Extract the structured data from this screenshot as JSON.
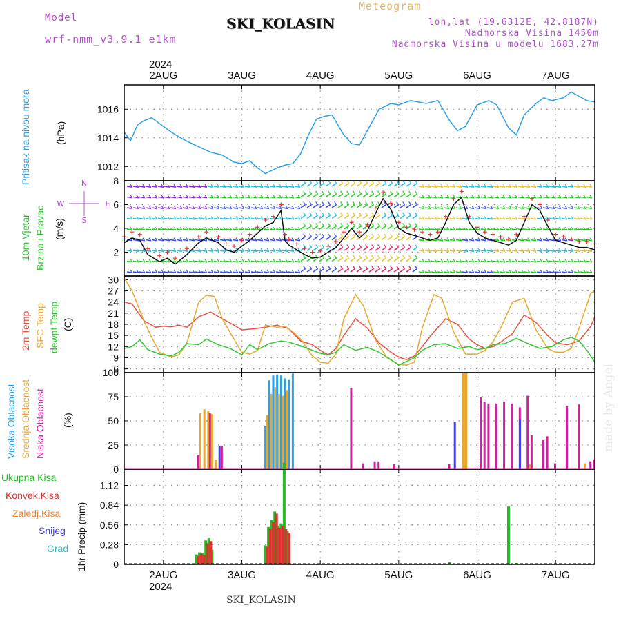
{
  "header": {
    "model_label": "Model",
    "model_value": "wrf-nmm_v3.9.1 e1km",
    "meteogram_label": "Meteogram",
    "station": "SKI_KOLASIN",
    "lonlat": "lon,lat (19.6312E, 42.8187N)",
    "altitude": "Nadmorska Visina 1450m",
    "model_altitude": "Nadmorska Visina u modelu 1683.27m",
    "footer_station": "SKI_KOLASIN",
    "watermark": "made by Angel"
  },
  "axes": {
    "top_year": "2024",
    "bottom_year": "2024",
    "day_labels": [
      "2AUG",
      "3AUG",
      "4AUG",
      "5AUG",
      "6AUG",
      "7AUG"
    ]
  },
  "panel_labels": {
    "pressure": [
      "Pritisak na nivou mora",
      "(hPa)"
    ],
    "wind": [
      "10m Vjetar",
      "Brzina i Pravac",
      "(m/s)"
    ],
    "wind_compass": [
      "N",
      "S",
      "W",
      "E"
    ],
    "temp": [
      "2m Temp",
      "SFC Temp",
      "dewpt Temp",
      "(C)"
    ],
    "cloud": [
      "Visoka Oblacnost",
      "Srednja Oblacnost",
      "Niska Oblacnost",
      "(%)"
    ],
    "precip": [
      "1hr Precip (mm)"
    ]
  },
  "legend": [
    {
      "label": "Ukupna Kisa",
      "color": "#22bb22"
    },
    {
      "label": "Konvek.Kisa",
      "color": "#e03030"
    },
    {
      "label": "Zaledj.Kisa",
      "color": "#f08030"
    },
    {
      "label": "Snijeg",
      "color": "#4040e0"
    },
    {
      "label": "Grad",
      "color": "#20c0c0"
    }
  ],
  "chart_data": [
    {
      "type": "line",
      "title": "Pritisak na nivou mora",
      "ylabel": "(hPa)",
      "x_unit": "days from 1 AUG 00UTC",
      "xlim": [
        1.5,
        7.5
      ],
      "ylim": [
        1011,
        1017.7
      ],
      "yticks": [
        1012,
        1014,
        1016
      ],
      "series": [
        {
          "color": "#2aa0e8",
          "x": [
            1.5,
            1.58,
            1.67,
            1.75,
            1.85,
            2.0,
            2.1,
            2.25,
            2.4,
            2.6,
            2.75,
            2.9,
            3.0,
            3.1,
            3.2,
            3.3,
            3.45,
            3.55,
            3.65,
            3.75,
            3.85,
            3.95,
            4.05,
            4.15,
            4.3,
            4.4,
            4.5,
            4.6,
            4.75,
            4.9,
            5.0,
            5.15,
            5.35,
            5.5,
            5.65,
            5.75,
            5.85,
            6.0,
            6.15,
            6.25,
            6.4,
            6.5,
            6.6,
            6.75,
            6.85,
            6.95,
            7.1,
            7.2,
            7.3,
            7.4,
            7.5
          ],
          "values": [
            1014.4,
            1013.8,
            1014.9,
            1015.2,
            1015.4,
            1014.8,
            1014.4,
            1013.9,
            1013.5,
            1013.0,
            1012.8,
            1012.3,
            1012.2,
            1012.4,
            1011.9,
            1011.5,
            1011.9,
            1012.1,
            1012.2,
            1012.9,
            1014.2,
            1015.3,
            1015.5,
            1015.6,
            1014.2,
            1013.6,
            1013.5,
            1014.5,
            1016.0,
            1016.4,
            1016.3,
            1016.6,
            1016.4,
            1016.6,
            1015.2,
            1014.5,
            1014.8,
            1016.3,
            1016.6,
            1016.3,
            1014.7,
            1014.2,
            1015.6,
            1016.4,
            1016.8,
            1016.6,
            1016.8,
            1017.2,
            1016.9,
            1016.6,
            1016.5
          ]
        }
      ]
    },
    {
      "type": "line",
      "title": "10m Vjetar Brzina i Pravac",
      "ylabel": "(m/s)",
      "xlim": [
        1.5,
        7.5
      ],
      "ylim": [
        0,
        8
      ],
      "yticks": [
        2,
        4,
        6,
        8
      ],
      "series": [
        {
          "name": "speed",
          "color": "#111111",
          "x": [
            1.5,
            1.6,
            1.7,
            1.8,
            1.95,
            2.05,
            2.15,
            2.3,
            2.45,
            2.55,
            2.7,
            2.8,
            2.9,
            3.0,
            3.1,
            3.2,
            3.3,
            3.4,
            3.5,
            3.55,
            3.6,
            3.7,
            3.8,
            3.9,
            4.0,
            4.1,
            4.2,
            4.3,
            4.4,
            4.5,
            4.6,
            4.7,
            4.8,
            4.9,
            5.0,
            5.1,
            5.2,
            5.3,
            5.4,
            5.5,
            5.6,
            5.7,
            5.8,
            5.9,
            6.0,
            6.1,
            6.2,
            6.3,
            6.4,
            6.5,
            6.6,
            6.7,
            6.8,
            6.9,
            7.0,
            7.1,
            7.2,
            7.3,
            7.4,
            7.5
          ],
          "values": [
            2.8,
            3.2,
            3.0,
            1.8,
            1.2,
            1.5,
            1.0,
            1.8,
            2.8,
            3.2,
            2.8,
            2.2,
            2.0,
            2.5,
            3.0,
            3.6,
            4.2,
            4.5,
            5.5,
            3.0,
            2.6,
            2.2,
            1.8,
            1.5,
            1.6,
            2.0,
            2.4,
            3.2,
            4.0,
            3.2,
            3.8,
            5.2,
            6.5,
            5.6,
            4.0,
            3.6,
            3.4,
            3.2,
            3.0,
            3.2,
            4.5,
            6.0,
            6.6,
            4.5,
            3.6,
            3.2,
            3.0,
            2.8,
            2.6,
            3.0,
            4.5,
            6.0,
            5.5,
            4.2,
            3.0,
            2.8,
            2.6,
            2.4,
            2.4,
            2.2
          ]
        }
      ],
      "barb_color_levels": [
        "#8a2be2",
        "#3050f0",
        "#20c0e0",
        "#20d020",
        "#e8c030",
        "#e02060"
      ]
    },
    {
      "type": "line",
      "title": "Temperature",
      "ylabel": "(C)",
      "xlim": [
        1.5,
        7.5
      ],
      "ylim": [
        5,
        31
      ],
      "yticks": [
        6,
        9,
        12,
        15,
        18,
        21,
        24,
        27,
        30
      ],
      "series": [
        {
          "name": "2m Temp",
          "color": "#e85040",
          "x": [
            1.5,
            1.6,
            1.75,
            1.9,
            2.0,
            2.1,
            2.2,
            2.3,
            2.45,
            2.6,
            2.75,
            2.9,
            3.0,
            3.15,
            3.3,
            3.45,
            3.6,
            3.75,
            3.9,
            4.0,
            4.1,
            4.2,
            4.3,
            4.45,
            4.6,
            4.75,
            4.9,
            5.0,
            5.1,
            5.2,
            5.3,
            5.45,
            5.6,
            5.75,
            5.9,
            6.0,
            6.1,
            6.2,
            6.3,
            6.45,
            6.6,
            6.75,
            6.9,
            7.0,
            7.15,
            7.3,
            7.45,
            7.5
          ],
          "values": [
            24,
            23.5,
            19,
            17.2,
            17.5,
            17.3,
            17.8,
            17.2,
            20,
            21.3,
            19.5,
            17.8,
            16.5,
            16.8,
            17.2,
            17.8,
            16.8,
            13.5,
            12.5,
            11,
            9.8,
            11.5,
            15,
            19.5,
            17,
            13,
            10.5,
            9.2,
            8.5,
            9.5,
            12,
            16,
            19.5,
            18,
            14,
            12.5,
            11.5,
            12,
            13.2,
            15.5,
            20.5,
            18.5,
            15,
            13,
            12.5,
            13.5,
            17.5,
            20
          ]
        },
        {
          "name": "SFC Temp",
          "color": "#e8a830",
          "x": [
            1.5,
            1.6,
            1.75,
            1.85,
            1.95,
            2.1,
            2.2,
            2.3,
            2.45,
            2.55,
            2.65,
            2.75,
            2.9,
            3.0,
            3.1,
            3.2,
            3.3,
            3.45,
            3.55,
            3.65,
            3.75,
            3.9,
            4.0,
            4.1,
            4.2,
            4.3,
            4.45,
            4.55,
            4.7,
            4.85,
            5.0,
            5.1,
            5.2,
            5.3,
            5.45,
            5.55,
            5.7,
            5.85,
            6.0,
            6.1,
            6.2,
            6.3,
            6.45,
            6.6,
            6.75,
            6.9,
            7.0,
            7.1,
            7.2,
            7.3,
            7.45,
            7.5
          ],
          "values": [
            30.5,
            27,
            19,
            14.5,
            10.5,
            9.2,
            9.8,
            13,
            24,
            25.8,
            25.5,
            19.5,
            14,
            10.5,
            10,
            11,
            17.8,
            17.2,
            17.5,
            16,
            14,
            9.5,
            7.8,
            7.5,
            10,
            19.5,
            26,
            23,
            14,
            9,
            7.2,
            7,
            7.8,
            17,
            26,
            25,
            16,
            10,
            10,
            11,
            13.2,
            17,
            24,
            25,
            16.5,
            11.5,
            10.5,
            10.5,
            11.5,
            17,
            26.5,
            26.8
          ]
        },
        {
          "name": "dewpt Temp",
          "color": "#30c830",
          "x": [
            1.5,
            1.6,
            1.7,
            1.8,
            1.95,
            2.1,
            2.2,
            2.3,
            2.45,
            2.55,
            2.7,
            2.85,
            3.0,
            3.1,
            3.2,
            3.35,
            3.5,
            3.6,
            3.75,
            3.9,
            4.0,
            4.1,
            4.2,
            4.3,
            4.45,
            4.6,
            4.75,
            4.9,
            5.0,
            5.1,
            5.2,
            5.3,
            5.45,
            5.6,
            5.75,
            5.9,
            6.0,
            6.1,
            6.2,
            6.35,
            6.5,
            6.65,
            6.8,
            6.95,
            7.1,
            7.2,
            7.3,
            7.4,
            7.5
          ],
          "values": [
            11.5,
            12,
            13.8,
            11.2,
            10,
            9.5,
            10.5,
            12.8,
            12.5,
            14,
            12.5,
            11.5,
            9.8,
            12.5,
            11.2,
            12.8,
            13.5,
            13.2,
            12.2,
            11,
            10.2,
            9.8,
            10.5,
            12.5,
            11,
            11.8,
            10.5,
            8.5,
            7,
            8,
            9,
            11,
            12.5,
            12.8,
            11.5,
            12,
            11.2,
            11.5,
            12.5,
            12.8,
            14.2,
            12.8,
            11.5,
            12,
            13.8,
            14.5,
            13.5,
            11,
            7.8
          ]
        }
      ]
    },
    {
      "type": "bar",
      "title": "Oblacnost",
      "ylabel": "(%)",
      "xlim": [
        1.5,
        7.5
      ],
      "ylim": [
        0,
        100
      ],
      "yticks": [
        0,
        25,
        50,
        75,
        100
      ],
      "series": [
        {
          "name": "Visoka Oblacnost",
          "color": "#2aa0e8",
          "x": [
            3.3,
            3.35,
            3.4,
            3.45,
            3.5,
            3.55,
            3.6,
            3.65
          ],
          "values": [
            45,
            92,
            97,
            98,
            97,
            94,
            93,
            99
          ]
        },
        {
          "name": "Srednja Oblacnost",
          "color": "#e8a830",
          "x": [
            2.45,
            2.5,
            2.55,
            2.6,
            2.65,
            3.3,
            3.35,
            3.4,
            3.45,
            3.5,
            3.55,
            5.8,
            5.82,
            5.84,
            6.65,
            7.35
          ],
          "values": [
            58,
            62,
            60,
            57,
            10,
            56,
            78,
            85,
            78,
            76,
            82,
            100,
            100,
            100,
            5,
            6
          ]
        },
        {
          "name": "Niska Oblacnost",
          "color": "#d020a0",
          "x": [
            2.4,
            2.55,
            2.7,
            4.35,
            4.5,
            4.65,
            4.7,
            4.9,
            5.6,
            6.0,
            6.05,
            6.1,
            6.2,
            6.3,
            6.4,
            6.5,
            6.6,
            6.65,
            6.8,
            6.85,
            6.95,
            7.1,
            7.25,
            7.4,
            7.45
          ],
          "values": [
            15,
            58,
            24,
            84,
            6,
            8,
            8,
            5,
            5,
            75,
            70,
            68,
            68,
            70,
            68,
            64,
            76,
            35,
            30,
            34,
            6,
            65,
            67,
            8,
            10
          ]
        },
        {
          "name": "Snijeg",
          "color": "#4040e0",
          "x": [
            2.65,
            5.65,
            6.48
          ],
          "values": [
            24,
            49,
            52
          ]
        }
      ]
    },
    {
      "type": "bar",
      "title": "Padavine",
      "ylabel": "1hr Precip (mm)",
      "xlim": [
        1.5,
        7.5
      ],
      "ylim": [
        0,
        1.35
      ],
      "yticks": [
        0,
        0.28,
        0.56,
        0.84,
        1.12
      ],
      "series": [
        {
          "name": "Ukupna Kisa",
          "color": "#22bb22",
          "x": [
            2.42,
            2.46,
            2.5,
            2.54,
            2.58,
            2.62,
            3.3,
            3.34,
            3.38,
            3.42,
            3.46,
            3.5,
            3.54,
            3.58,
            5.65,
            6.4,
            6.5
          ],
          "values": [
            0.14,
            0.17,
            0.16,
            0.34,
            0.37,
            0.21,
            0.27,
            0.53,
            0.63,
            0.75,
            0.55,
            0.58,
            1.44,
            0.48,
            0.03,
            0.82,
            0.02
          ]
        },
        {
          "name": "Konvek.Kisa",
          "color": "#e03030",
          "x": [
            2.42,
            2.46,
            2.5,
            2.54,
            2.58,
            3.3,
            3.34,
            3.38,
            3.42,
            3.46,
            3.5,
            3.54,
            3.58
          ],
          "values": [
            0.12,
            0.15,
            0.13,
            0.3,
            0.33,
            0.25,
            0.5,
            0.6,
            0.72,
            0.52,
            0.55,
            0.5,
            0.45
          ]
        }
      ]
    }
  ]
}
